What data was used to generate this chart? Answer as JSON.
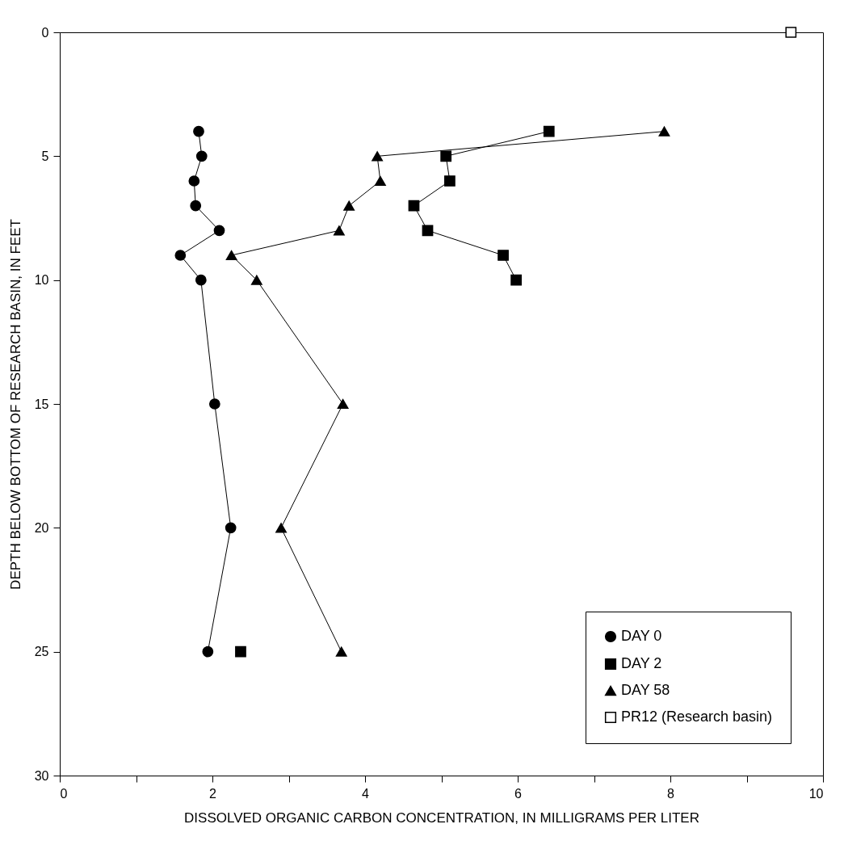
{
  "chart_data": {
    "type": "line",
    "xlabel": "DISSOLVED ORGANIC CARBON CONCENTRATION, IN MILLIGRAMS PER LITER",
    "ylabel": "DEPTH BELOW BOTTOM OF RESEARCH BASIN, IN FEET",
    "xlim": [
      0,
      10
    ],
    "ylim": [
      30,
      0
    ],
    "xticks": [
      0,
      {
        "value": 1,
        "label": null
      },
      2,
      {
        "value": 3,
        "label": null
      },
      4,
      {
        "value": 5,
        "label": null
      },
      6,
      {
        "value": 7,
        "label": null
      },
      8,
      {
        "value": 9,
        "label": null
      },
      10
    ],
    "yticks": [
      0,
      5,
      10,
      15,
      20,
      25,
      30
    ],
    "grid": false,
    "legend": "bottom right",
    "series": [
      {
        "name": "DAY 0",
        "color": "#000000",
        "marker": "circle",
        "x": [
          1.82,
          1.86,
          1.76,
          1.78,
          2.09,
          1.58,
          1.85,
          2.03,
          2.24,
          1.94
        ],
        "values": [
          4,
          5,
          6,
          7,
          8,
          9,
          10,
          15,
          20,
          25
        ]
      },
      {
        "name": "DAY 2",
        "color": "#000000",
        "marker": "square",
        "x": [
          6.41,
          5.06,
          5.11,
          4.64,
          4.82,
          5.81,
          5.98,
          null,
          2.37
        ],
        "values": [
          4,
          5,
          6,
          7,
          8,
          9,
          10,
          null,
          25
        ]
      },
      {
        "name": "DAY 58",
        "color": "#000000",
        "marker": "triangle",
        "x": [
          7.92,
          4.16,
          4.2,
          3.79,
          3.66,
          2.25,
          2.58,
          3.71,
          2.9,
          3.69
        ],
        "values": [
          4,
          5,
          6,
          7,
          8,
          9,
          10,
          15,
          20,
          25
        ]
      },
      {
        "name": "PR12 (Research basin)",
        "type": "scatter",
        "color": "#000000",
        "marker": "square",
        "x": [
          9.58
        ],
        "values": [
          0
        ]
      }
    ]
  }
}
